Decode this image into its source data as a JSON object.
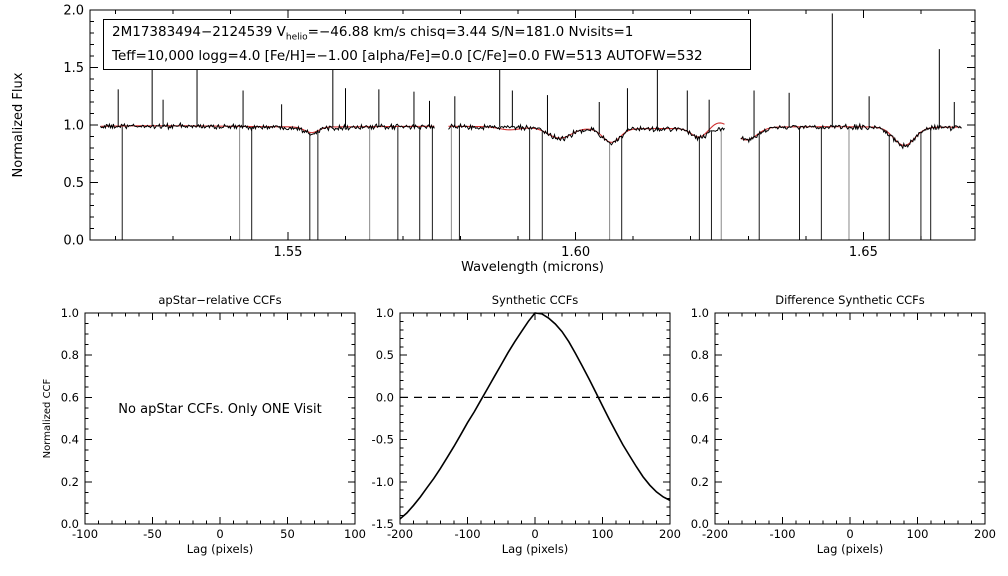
{
  "top_panel": {
    "ylabel": "Normalized Flux",
    "xlabel": "Wavelength (microns)",
    "annotation": {
      "line1_pre": "2M17383494−2124539  V",
      "line1_sub": "helio",
      "line1_post": "=−46.88 km/s  chisq=3.44  S/N=181.0  Nvisits=1",
      "line2": "Teff=10,000 logg=4.0 [Fe/H]=−1.00 [alpha/Fe]=0.0 [C/Fe]=0.0 FW=513 AUTOFW=532"
    }
  },
  "chart_data": [
    {
      "id": "spectrum",
      "type": "line",
      "title": "",
      "xlabel": "Wavelength (microns)",
      "ylabel": "Normalized Flux",
      "xlim": [
        1.5156,
        1.6694
      ],
      "ylim": [
        0.0,
        2.0
      ],
      "xticks": [
        1.55,
        1.6,
        1.65
      ],
      "xtick_labels": [
        "1.55",
        "1.60",
        "1.65"
      ],
      "x_minor_step": 0.01,
      "yticks": [
        0.0,
        0.5,
        1.0,
        1.5,
        2.0
      ],
      "ytick_labels": [
        "0.0",
        "0.5",
        "1.0",
        "1.5",
        "2.0"
      ],
      "y_minor_step": 0.1,
      "series": [
        {
          "name": "observed visit spectrum",
          "color": "#000000",
          "style": "noisy"
        },
        {
          "name": "best-fit synthetic model",
          "color": "#cf3030",
          "style": "smooth"
        }
      ],
      "detector_chunks": [
        [
          1.5174,
          1.5756
        ],
        [
          1.5779,
          1.626
        ],
        [
          1.6287,
          1.6672
        ]
      ],
      "continuum_level": 0.98,
      "absorption_lines": [
        {
          "w": 1.5541,
          "depth": 0.05,
          "sigma": 0.0012
        },
        {
          "w": 1.5972,
          "depth": 0.09,
          "sigma": 0.002
        },
        {
          "w": 1.6062,
          "depth": 0.12,
          "sigma": 0.0015
        },
        {
          "w": 1.6215,
          "depth": 0.08,
          "sigma": 0.0014
        },
        {
          "w": 1.6297,
          "depth": 0.11,
          "sigma": 0.0018
        },
        {
          "w": 1.6571,
          "depth": 0.16,
          "sigma": 0.0018
        }
      ],
      "red_extra": [
        {
          "w": 1.625,
          "a": 0.05,
          "s": 0.0015
        },
        {
          "w": 1.5885,
          "a": -0.025,
          "s": 0.0018
        }
      ],
      "emission_spikes": [
        [
          1.5205,
          1.31
        ],
        [
          1.5264,
          1.53
        ],
        [
          1.5283,
          1.22
        ],
        [
          1.5342,
          1.55
        ],
        [
          1.5422,
          1.3
        ],
        [
          1.5489,
          1.18
        ],
        [
          1.5578,
          1.75
        ],
        [
          1.56,
          1.32
        ],
        [
          1.5658,
          1.31
        ],
        [
          1.5719,
          1.29
        ],
        [
          1.5746,
          1.21
        ],
        [
          1.579,
          1.25
        ],
        [
          1.5868,
          1.53
        ],
        [
          1.589,
          1.3
        ],
        [
          1.5951,
          1.26
        ],
        [
          1.6041,
          1.2
        ],
        [
          1.609,
          1.32
        ],
        [
          1.6142,
          1.53
        ],
        [
          1.6194,
          1.3
        ],
        [
          1.6232,
          1.22
        ],
        [
          1.631,
          1.3
        ],
        [
          1.6371,
          1.28
        ],
        [
          1.6446,
          1.97
        ],
        [
          1.651,
          1.25
        ],
        [
          1.6632,
          1.66
        ],
        [
          1.6658,
          1.2
        ]
      ],
      "dropout_spikes": [
        1.5212,
        1.5416,
        1.5437,
        1.5538,
        1.5552,
        1.5642,
        1.5691,
        1.5729,
        1.5751,
        1.5784,
        1.5798,
        1.592,
        1.5942,
        1.6059,
        1.608,
        1.6215,
        1.6236,
        1.6253,
        1.6319,
        1.6389,
        1.6427,
        1.6475,
        1.6545,
        1.66,
        1.6617
      ],
      "noise_amplitude": 0.012
    },
    {
      "id": "apstar_ccf",
      "type": "line",
      "title": "apStar−relative CCFs",
      "xlabel": "Lag (pixels)",
      "ylabel": "Normalized CCF",
      "xlim": [
        -100,
        100
      ],
      "ylim": [
        0.0,
        1.0
      ],
      "xticks": [
        -100,
        -50,
        0,
        50,
        100
      ],
      "xtick_labels": [
        "-100",
        "-50",
        "0",
        "50",
        "100"
      ],
      "x_minor_step": 10,
      "yticks": [
        0.0,
        0.2,
        0.4,
        0.6,
        0.8,
        1.0
      ],
      "ytick_labels": [
        "0.0",
        "0.2",
        "0.4",
        "0.6",
        "0.8",
        "1.0"
      ],
      "y_minor_step": 0.05,
      "note": "No apStar CCFs.  Only ONE Visit",
      "series": []
    },
    {
      "id": "synthetic_ccf",
      "type": "line",
      "title": "Synthetic CCFs",
      "xlabel": "Lag (pixels)",
      "ylabel": "",
      "xlim": [
        -200,
        200
      ],
      "ylim": [
        -1.5,
        1.0
      ],
      "xticks": [
        -200,
        -100,
        0,
        100,
        200
      ],
      "xtick_labels": [
        "-200",
        "-100",
        "0",
        "100",
        "200"
      ],
      "x_minor_step": 20,
      "yticks": [
        -1.5,
        -1.0,
        -0.5,
        0.0,
        0.5,
        1.0
      ],
      "ytick_labels": [
        "-1.5",
        "-1.0",
        "-0.5",
        "0.0",
        "0.5",
        "1.0"
      ],
      "y_minor_step": 0.1,
      "zero_line": {
        "y": 0,
        "style": "dashed"
      },
      "series": [
        {
          "name": "synthetic CCF",
          "color": "#000000",
          "x": [
            -200,
            -190,
            -180,
            -170,
            -160,
            -150,
            -140,
            -130,
            -120,
            -110,
            -100,
            -90,
            -80,
            -70,
            -60,
            -50,
            -40,
            -30,
            -20,
            -10,
            0,
            10,
            20,
            30,
            40,
            50,
            60,
            70,
            80,
            90,
            100,
            110,
            120,
            130,
            140,
            150,
            160,
            170,
            180,
            190,
            200
          ],
          "y": [
            -1.44,
            -1.37,
            -1.28,
            -1.18,
            -1.07,
            -0.96,
            -0.84,
            -0.71,
            -0.58,
            -0.44,
            -0.3,
            -0.17,
            -0.03,
            0.11,
            0.25,
            0.39,
            0.53,
            0.66,
            0.78,
            0.9,
            1.0,
            0.99,
            0.94,
            0.87,
            0.78,
            0.66,
            0.52,
            0.37,
            0.22,
            0.06,
            -0.1,
            -0.26,
            -0.41,
            -0.56,
            -0.69,
            -0.82,
            -0.94,
            -1.04,
            -1.12,
            -1.18,
            -1.22
          ]
        }
      ]
    },
    {
      "id": "difference_ccf",
      "type": "line",
      "title": "Difference Synthetic CCFs",
      "xlabel": "Lag (pixels)",
      "ylabel": "",
      "xlim": [
        -200,
        200
      ],
      "ylim": [
        0.0,
        1.0
      ],
      "xticks": [
        -200,
        -100,
        0,
        100,
        200
      ],
      "xtick_labels": [
        "-200",
        "-100",
        "0",
        "100",
        "200"
      ],
      "x_minor_step": 20,
      "yticks": [
        0.0,
        0.2,
        0.4,
        0.6,
        0.8,
        1.0
      ],
      "ytick_labels": [
        "0.0",
        "0.2",
        "0.4",
        "0.6",
        "0.8",
        "1.0"
      ],
      "y_minor_step": 0.05,
      "series": []
    }
  ]
}
